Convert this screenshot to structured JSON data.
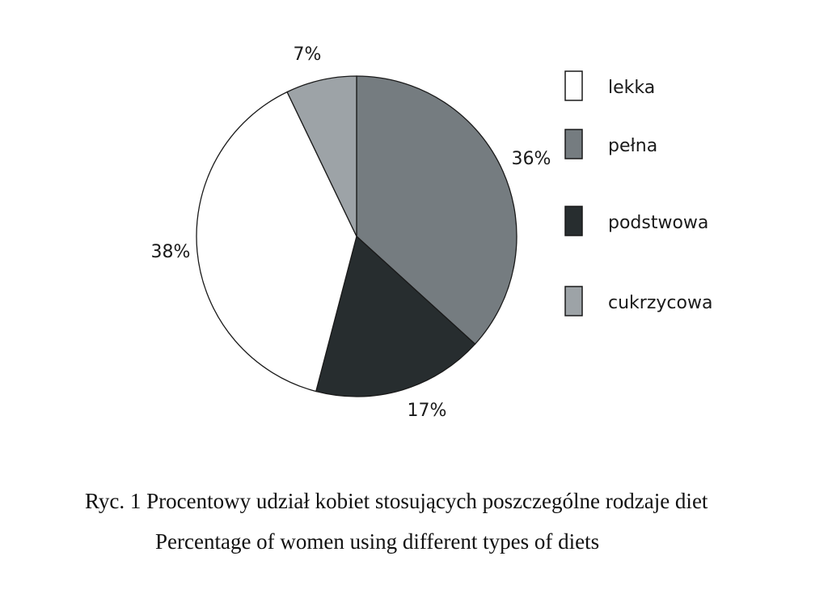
{
  "chart_data": {
    "type": "pie",
    "start": "12 o'clock, clockwise",
    "series": [
      {
        "name": "pełna",
        "value": 36,
        "label": "36%",
        "color": "#757c80"
      },
      {
        "name": "podstwowa",
        "value": 17,
        "label": "17%",
        "color": "#272d2f"
      },
      {
        "name": "lekka",
        "value": 38,
        "label": "38%",
        "color": "#ffffff"
      },
      {
        "name": "cukrzycowa",
        "value": 7,
        "label": "7%",
        "color": "#9da3a7"
      }
    ],
    "legend": {
      "placement": "right",
      "items": [
        {
          "label": "lekka",
          "color": "#ffffff"
        },
        {
          "label": "pełna",
          "color": "#757c80"
        },
        {
          "label": "podstwowa",
          "color": "#272d2f"
        },
        {
          "label": "cukrzycowa",
          "color": "#9da3a7"
        }
      ]
    }
  },
  "caption": {
    "polish": "Ryc. 1 Procentowy udział kobiet stosujących poszczególne rodzaje diet",
    "english": "Percentage of women using different types of diets"
  }
}
